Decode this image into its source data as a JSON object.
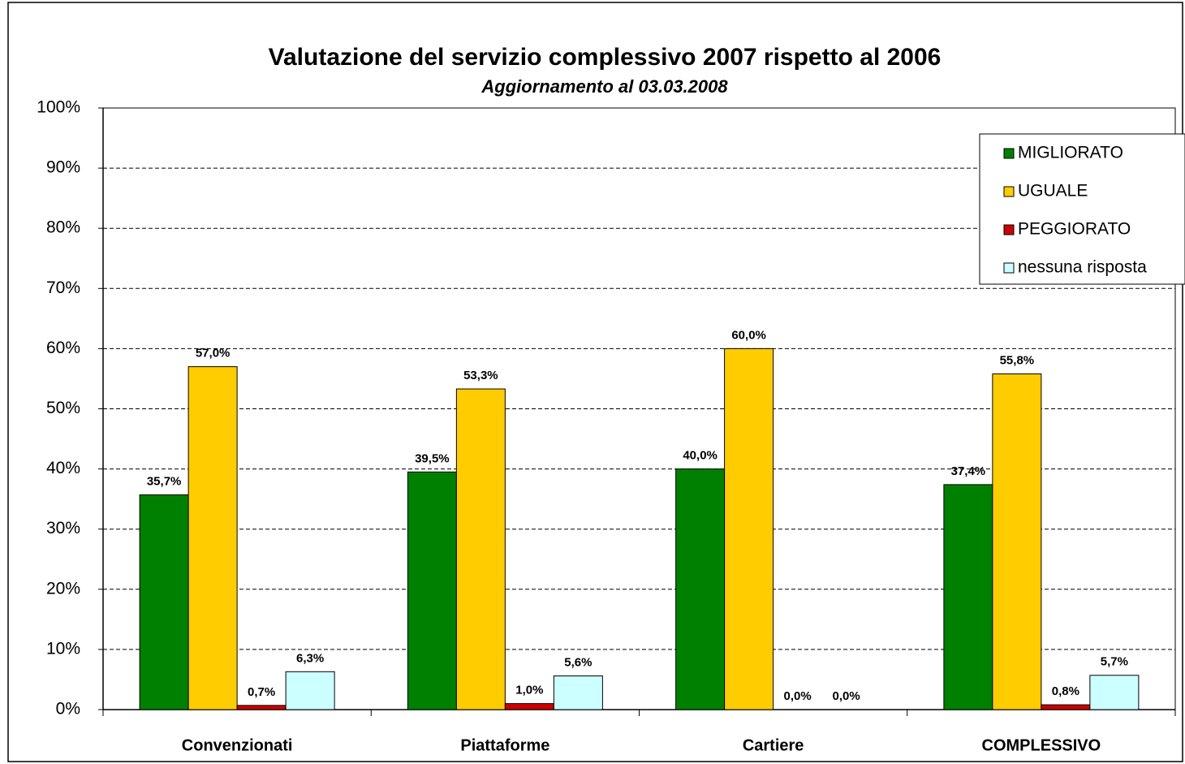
{
  "chart_data": {
    "type": "bar",
    "title": "Valutazione del servizio complessivo 2007 rispetto al 2006",
    "subtitle": "Aggiornamento al 03.03.2008",
    "categories": [
      "Convenzionati",
      "Piattaforme",
      "Cartiere",
      "COMPLESSIVO"
    ],
    "series": [
      {
        "name": "MIGLIORATO",
        "color": "#008000",
        "values": [
          35.7,
          39.5,
          40.0,
          37.4
        ],
        "value_labels": [
          "35,7%",
          "39,5%",
          "40,0%",
          "37,4%"
        ]
      },
      {
        "name": "UGUALE",
        "color": "#ffcc00",
        "values": [
          57.0,
          53.3,
          60.0,
          55.8
        ],
        "value_labels": [
          "57,0%",
          "53,3%",
          "60,0%",
          "55,8%"
        ]
      },
      {
        "name": "PEGGIORATO",
        "color": "#cc0000",
        "values": [
          0.7,
          1.0,
          0.0,
          0.8
        ],
        "value_labels": [
          "0,7%",
          "1,0%",
          "0,0%",
          "0,8%"
        ]
      },
      {
        "name": "nessuna risposta",
        "color": "#ccffff",
        "values": [
          6.3,
          5.6,
          0.0,
          5.7
        ],
        "value_labels": [
          "6,3%",
          "5,6%",
          "0,0%",
          "5,7%"
        ]
      }
    ],
    "ylim": [
      0,
      100
    ],
    "yticks": [
      {
        "value": 0,
        "label": "0%"
      },
      {
        "value": 10,
        "label": "10%"
      },
      {
        "value": 20,
        "label": "20%"
      },
      {
        "value": 30,
        "label": "30%"
      },
      {
        "value": 40,
        "label": "40%"
      },
      {
        "value": 50,
        "label": "50%"
      },
      {
        "value": 60,
        "label": "60%"
      },
      {
        "value": 70,
        "label": "70%"
      },
      {
        "value": 80,
        "label": "80%"
      },
      {
        "value": 90,
        "label": "90%"
      },
      {
        "value": 100,
        "label": "100%"
      }
    ],
    "grid": true,
    "legend": "upper right"
  }
}
